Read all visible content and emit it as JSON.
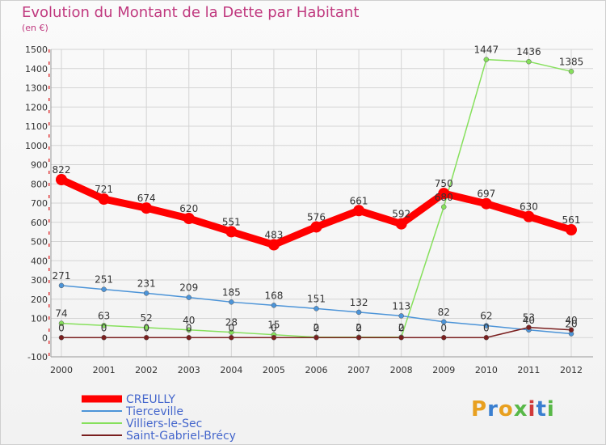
{
  "title": "Evolution du Montant de la Dette par Habitant",
  "subtitle": "(en €)",
  "logo_text": "Proxiti",
  "chart_data": {
    "type": "line",
    "x": [
      "2000",
      "2001",
      "2002",
      "2003",
      "2004",
      "2005",
      "2006",
      "2007",
      "2008",
      "2009",
      "2010",
      "2011",
      "2012"
    ],
    "ylim": [
      -100,
      1500
    ],
    "yticks": [
      -100,
      0,
      100,
      200,
      300,
      400,
      500,
      600,
      700,
      800,
      900,
      1000,
      1100,
      1200,
      1300,
      1400,
      1500
    ],
    "grid": true,
    "legend_position": "bottom-left",
    "series": [
      {
        "name": "CREULLY",
        "color": "#ff0000",
        "values": [
          822,
          721,
          674,
          620,
          551,
          483,
          576,
          661,
          592,
          750,
          697,
          630,
          561
        ],
        "labels": [
          "822",
          "721",
          "674",
          "620",
          "551",
          "483",
          "576",
          "661",
          "592",
          "750",
          "697",
          "630",
          "561"
        ]
      },
      {
        "name": "Tierceville",
        "color": "#4c94d8",
        "values": [
          271,
          251,
          231,
          209,
          185,
          168,
          151,
          132,
          113,
          82,
          62,
          40,
          20
        ],
        "labels": [
          "271",
          "251",
          "231",
          "209",
          "185",
          "168",
          "151",
          "132",
          "113",
          "82",
          "62",
          "40",
          "20"
        ]
      },
      {
        "name": "Villiers-le-Sec",
        "color": "#86e05c",
        "values": [
          74,
          63,
          52,
          40,
          28,
          15,
          2,
          2,
          2,
          680,
          1447,
          1436,
          1385
        ],
        "labels": [
          "74",
          "63",
          "52",
          "40",
          "28",
          "15",
          "2",
          "2",
          "2",
          "680",
          "1447",
          "1436",
          "1385"
        ]
      },
      {
        "name": "Saint-Gabriel-Brécy",
        "color": "#7a1f1f",
        "values": [
          0,
          0,
          0,
          0,
          0,
          0,
          0,
          0,
          0,
          0,
          0,
          53,
          40
        ],
        "labels": [
          "0",
          "0",
          "0",
          "0",
          "0",
          "0",
          "0",
          "0",
          "0",
          "0",
          "0",
          "53",
          "40"
        ]
      }
    ]
  }
}
